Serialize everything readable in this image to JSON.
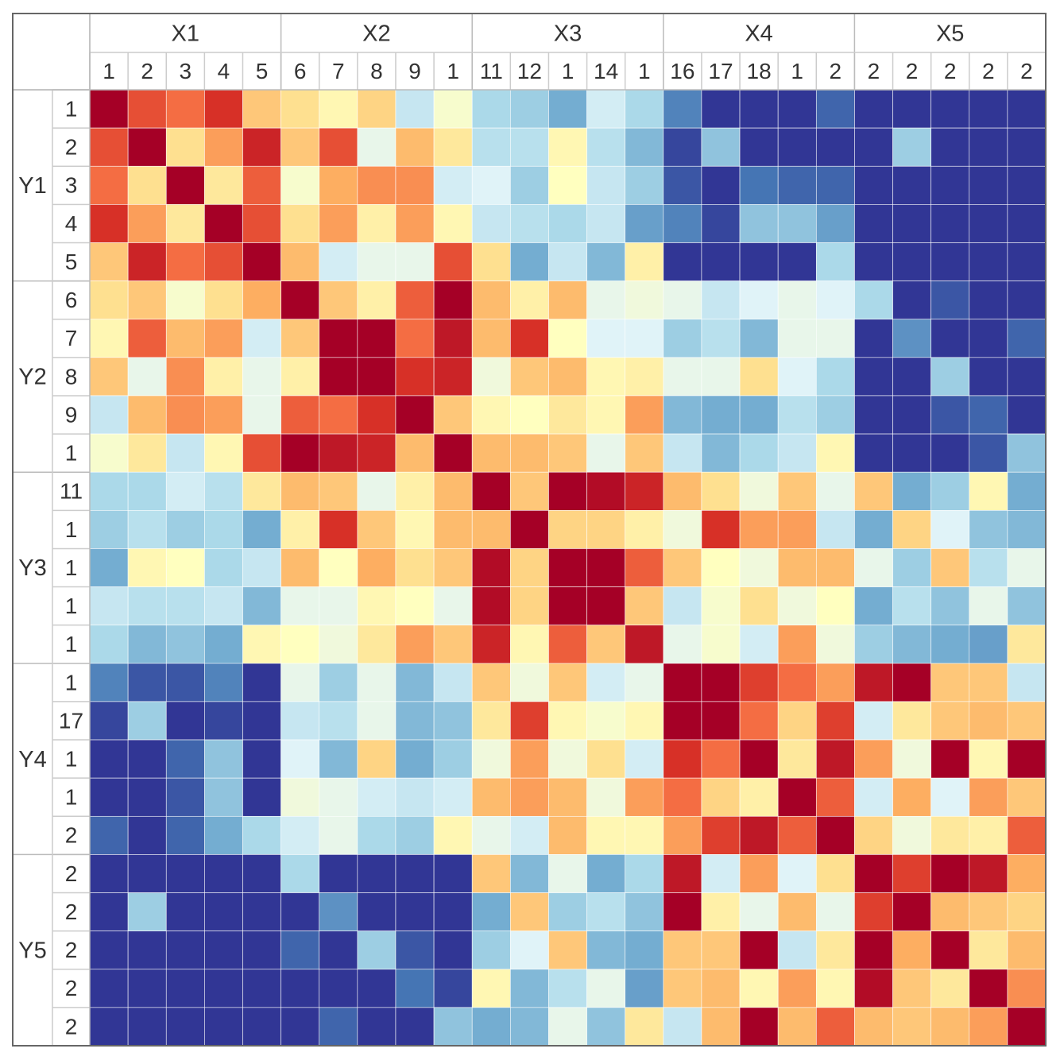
{
  "chart_data": {
    "type": "heatmap",
    "x_groups": [
      "X1",
      "X2",
      "X3",
      "X4",
      "X5"
    ],
    "y_groups": [
      "Y1",
      "Y2",
      "Y3",
      "Y4",
      "Y5"
    ],
    "x_categories": [
      "1",
      "2",
      "3",
      "4",
      "5",
      "6",
      "7",
      "8",
      "9",
      "1",
      "11",
      "12",
      "1",
      "14",
      "1",
      "16",
      "17",
      "18",
      "1",
      "2",
      "2",
      "2",
      "2",
      "2",
      "2"
    ],
    "y_categories": [
      "1",
      "2",
      "3",
      "4",
      "5",
      "6",
      "7",
      "8",
      "9",
      "1",
      "11",
      "1",
      "1",
      "1",
      "1",
      "1",
      "17",
      "1",
      "1",
      "2",
      "2",
      "2",
      "2",
      "2",
      "2"
    ],
    "vlim": [
      -1,
      1
    ],
    "colors": [
      "#313695",
      "#4575b4",
      "#74add1",
      "#abd9e9",
      "#e0f3f8",
      "#ffffbf",
      "#fee090",
      "#fdae61",
      "#f46d43",
      "#d73027",
      "#a50026"
    ],
    "values": [
      [
        1,
        0.7,
        0.6,
        0.8,
        0.3,
        0.2,
        0.05,
        0.25,
        -0.3,
        -0.05,
        -0.4,
        -0.45,
        -0.6,
        -0.25,
        -0.4,
        -0.75,
        -1,
        -1,
        -1,
        -0.85,
        -1,
        -1,
        -1,
        -1,
        -1
      ],
      [
        0.7,
        1,
        0.2,
        0.45,
        0.85,
        0.3,
        0.7,
        -0.15,
        0.35,
        0.15,
        -0.35,
        -0.35,
        0.05,
        -0.35,
        -0.55,
        -0.95,
        -0.5,
        -1,
        -1,
        -1,
        -1,
        -0.45,
        -1,
        -1,
        -1
      ],
      [
        0.6,
        0.2,
        1,
        0.15,
        0.65,
        -0.05,
        0.4,
        0.5,
        0.5,
        -0.25,
        -0.2,
        -0.45,
        0,
        -0.3,
        -0.45,
        -0.9,
        -1,
        -0.8,
        -0.85,
        -0.85,
        -1,
        -1,
        -1,
        -1,
        -1
      ],
      [
        0.8,
        0.45,
        0.15,
        1,
        0.7,
        0.2,
        0.45,
        0.1,
        0.45,
        0.05,
        -0.3,
        -0.35,
        -0.4,
        -0.3,
        -0.65,
        -0.75,
        -0.95,
        -0.5,
        -0.5,
        -0.65,
        -1,
        -1,
        -1,
        -1,
        -1
      ],
      [
        0.3,
        0.85,
        0.6,
        0.7,
        1,
        0.35,
        -0.25,
        -0.15,
        -0.15,
        0.7,
        0.2,
        -0.6,
        -0.3,
        -0.55,
        0.1,
        -1,
        -1,
        -1,
        -1,
        -0.4,
        -1,
        -1,
        -1,
        -1,
        -1
      ],
      [
        0.2,
        0.3,
        -0.05,
        0.2,
        0.4,
        1,
        0.3,
        0.1,
        0.65,
        1,
        0.35,
        0.1,
        0.35,
        -0.15,
        -0.1,
        -0.15,
        -0.3,
        -0.2,
        -0.15,
        -0.2,
        -0.4,
        -1,
        -0.9,
        -1,
        -1
      ],
      [
        0.05,
        0.65,
        0.35,
        0.45,
        -0.25,
        0.3,
        1,
        1,
        0.6,
        0.9,
        0.35,
        0.8,
        0,
        -0.2,
        -0.2,
        -0.45,
        -0.35,
        -0.55,
        -0.15,
        -0.15,
        -1,
        -0.7,
        -1,
        -1,
        -0.85
      ],
      [
        0.3,
        -0.15,
        0.5,
        0.1,
        -0.15,
        0.1,
        1,
        1,
        0.8,
        0.85,
        -0.1,
        0.3,
        0.35,
        0.05,
        0.1,
        -0.15,
        -0.15,
        0.2,
        -0.2,
        -0.4,
        -1,
        -1,
        -0.45,
        -1,
        -1
      ],
      [
        -0.3,
        0.35,
        0.5,
        0.45,
        -0.15,
        0.65,
        0.6,
        0.8,
        1,
        0.3,
        0.05,
        0,
        0.15,
        0.05,
        0.45,
        -0.55,
        -0.6,
        -0.6,
        -0.35,
        -0.45,
        -1,
        -1,
        -0.9,
        -0.85,
        -1
      ],
      [
        -0.05,
        0.15,
        -0.3,
        0.05,
        0.7,
        1,
        0.9,
        0.85,
        0.35,
        1,
        0.35,
        0.35,
        0.3,
        -0.15,
        0.3,
        -0.3,
        -0.55,
        -0.4,
        -0.3,
        0.05,
        -1,
        -1,
        -1,
        -0.9,
        -0.5
      ],
      [
        -0.4,
        -0.4,
        -0.25,
        -0.35,
        0.15,
        0.35,
        0.3,
        -0.15,
        0.1,
        0.35,
        1,
        0.3,
        1,
        0.95,
        0.85,
        0.35,
        0.2,
        -0.1,
        0.3,
        -0.15,
        0.3,
        -0.6,
        -0.45,
        0.05,
        -0.6
      ],
      [
        -0.45,
        -0.35,
        -0.45,
        -0.4,
        -0.6,
        0.1,
        0.8,
        0.3,
        0.05,
        0.35,
        0.35,
        1,
        0.25,
        0.25,
        0.1,
        -0.1,
        0.8,
        0.45,
        0.45,
        -0.3,
        -0.6,
        0.25,
        -0.2,
        -0.5,
        -0.55
      ],
      [
        -0.6,
        0.05,
        0,
        -0.4,
        -0.3,
        0.35,
        0,
        0.4,
        0.2,
        0.3,
        0.95,
        0.25,
        1,
        1,
        0.65,
        0.3,
        0,
        -0.1,
        0.35,
        0.35,
        -0.15,
        -0.45,
        0.3,
        -0.35,
        -0.15
      ],
      [
        -0.3,
        -0.35,
        -0.35,
        -0.3,
        -0.55,
        -0.15,
        -0.15,
        0.05,
        0,
        -0.15,
        0.95,
        0.25,
        1,
        1,
        0.3,
        -0.3,
        -0.05,
        0.2,
        -0.1,
        0,
        -0.6,
        -0.35,
        -0.5,
        -0.15,
        -0.5
      ],
      [
        -0.4,
        -0.55,
        -0.5,
        -0.6,
        0.05,
        0,
        -0.1,
        0.15,
        0.45,
        0.3,
        0.85,
        0.05,
        0.65,
        0.3,
        0.9,
        -0.15,
        -0.05,
        -0.25,
        0.45,
        -0.1,
        -0.45,
        -0.55,
        -0.6,
        -0.65,
        0.15
      ],
      [
        -0.75,
        -0.9,
        -0.9,
        -0.75,
        -1,
        -0.15,
        -0.45,
        -0.15,
        -0.55,
        -0.3,
        0.3,
        -0.1,
        0.3,
        -0.25,
        -0.15,
        1,
        1,
        0.75,
        0.6,
        0.45,
        0.9,
        1,
        0.3,
        0.3,
        -0.3
      ],
      [
        -0.95,
        -0.45,
        -1,
        -0.95,
        -1,
        -0.3,
        -0.35,
        -0.15,
        -0.55,
        -0.5,
        0.15,
        0.75,
        0.05,
        -0.05,
        0.05,
        1,
        1,
        0.6,
        0.25,
        0.75,
        -0.25,
        0.15,
        0.3,
        0.35,
        0.3
      ],
      [
        -1,
        -1,
        -0.85,
        -0.5,
        -1,
        -0.2,
        -0.55,
        0.25,
        -0.6,
        -0.45,
        -0.1,
        0.45,
        -0.1,
        0.2,
        -0.25,
        0.8,
        0.6,
        1,
        0.15,
        0.9,
        0.45,
        -0.1,
        1,
        0.05,
        1
      ],
      [
        -1,
        -1,
        -0.9,
        -0.5,
        -1,
        -0.1,
        -0.15,
        -0.25,
        -0.3,
        -0.25,
        0.35,
        0.45,
        0.35,
        -0.1,
        0.45,
        0.6,
        0.25,
        0.1,
        1,
        0.65,
        -0.25,
        0.4,
        -0.2,
        0.45,
        0.3
      ],
      [
        -0.85,
        -1,
        -0.85,
        -0.6,
        -0.4,
        -0.25,
        -0.15,
        -0.4,
        -0.45,
        0.05,
        -0.15,
        -0.25,
        0.35,
        0.05,
        0.05,
        0.45,
        0.75,
        0.9,
        0.65,
        1,
        0.25,
        -0.1,
        0.15,
        0.1,
        0.65
      ],
      [
        -1,
        -1,
        -1,
        -1,
        -1,
        -0.4,
        -1,
        -1,
        -1,
        -1,
        0.3,
        -0.55,
        -0.15,
        -0.6,
        -0.4,
        0.9,
        -0.25,
        0.45,
        -0.2,
        0.2,
        1,
        0.75,
        1,
        0.9,
        0.4
      ],
      [
        -1,
        -0.45,
        -1,
        -1,
        -1,
        -1,
        -0.7,
        -1,
        -1,
        -1,
        -0.6,
        0.3,
        -0.45,
        -0.35,
        -0.5,
        1,
        0.1,
        -0.15,
        0.35,
        -0.15,
        0.75,
        1,
        0.35,
        0.3,
        0.25
      ],
      [
        -1,
        -1,
        -1,
        -1,
        -1,
        -0.85,
        -1,
        -0.45,
        -0.9,
        -1,
        -0.45,
        -0.2,
        0.3,
        -0.55,
        -0.6,
        0.3,
        0.3,
        1,
        -0.3,
        0.15,
        1,
        0.4,
        1,
        0.15,
        0.35
      ],
      [
        -1,
        -1,
        -1,
        -1,
        -1,
        -1,
        -1,
        -1,
        -0.8,
        -0.95,
        0.05,
        -0.55,
        -0.35,
        -0.15,
        -0.65,
        0.3,
        0.35,
        0.05,
        0.45,
        0.05,
        0.95,
        0.3,
        0.15,
        1,
        0.5
      ],
      [
        -1,
        -1,
        -1,
        -1,
        -1,
        -1,
        -0.85,
        -1,
        -1,
        -0.5,
        -0.6,
        -0.55,
        -0.15,
        -0.5,
        0.15,
        -0.3,
        0.35,
        1,
        0.35,
        0.65,
        0.35,
        0.3,
        0.35,
        0.45,
        1
      ]
    ]
  }
}
